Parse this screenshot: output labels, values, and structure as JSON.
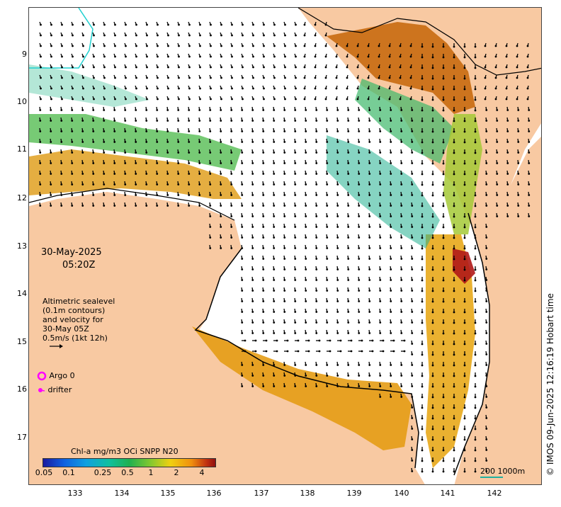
{
  "date": "30-May-2025",
  "time": "05:20Z",
  "velocity_note": [
    "Altimetric sealevel",
    "(0.1m contours)",
    "and velocity for",
    "30-May 05Z",
    "0.5m/s (1kt 12h)"
  ],
  "legend": {
    "argo": "Argo 0",
    "drifter": "drifter"
  },
  "colorbar": {
    "title": "Chl-a mg/m3 OCi SNPP N20",
    "ticks": [
      "0.05",
      "0.1",
      "0.25",
      "0.5",
      "1",
      "2",
      "4"
    ]
  },
  "scale_label": "200  1000m",
  "credit": "© IMOS 09-Jun-2025 12:16:19 Hobart time",
  "axes": {
    "lat_ticks": [
      "9",
      "10",
      "11",
      "12",
      "13",
      "14",
      "15",
      "16",
      "17"
    ],
    "lon_ticks": [
      "133",
      "134",
      "135",
      "136",
      "137",
      "138",
      "139",
      "140",
      "141",
      "142"
    ]
  },
  "colors": {
    "land": "#f8c9a2",
    "arrow": "#000000",
    "argo": "#ff00ff"
  }
}
